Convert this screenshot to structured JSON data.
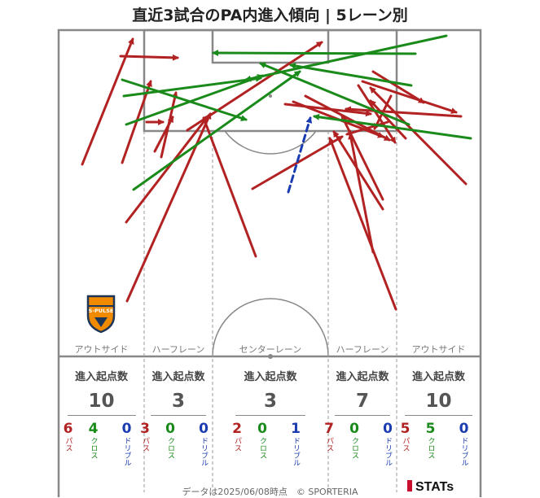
{
  "title": "直近3試合のPA内進入傾向 | 5レーン別",
  "lanes": [
    {
      "label": "アウトサイド"
    },
    {
      "label": "ハーフレーン"
    },
    {
      "label": "センターレーン"
    },
    {
      "label": "ハーフレーン"
    },
    {
      "label": "アウトサイド"
    }
  ],
  "stats_title": "進入起点数",
  "stats": [
    {
      "total": "10",
      "pass": "6",
      "cross": "4",
      "dribble": "0"
    },
    {
      "total": "3",
      "pass": "3",
      "cross": "0",
      "dribble": "0"
    },
    {
      "total": "3",
      "pass": "2",
      "cross": "0",
      "dribble": "1"
    },
    {
      "total": "7",
      "pass": "7",
      "cross": "0",
      "dribble": "0"
    },
    {
      "total": "10",
      "pass": "5",
      "cross": "5",
      "dribble": "0"
    }
  ],
  "labels": {
    "pass": "パス",
    "cross": "クロス",
    "dribble": "ドリブル"
  },
  "colors": {
    "pass": "#b22222",
    "cross": "#1a8a1a",
    "dribble": "#1a3cb0"
  },
  "crest_text": "S-PULSE",
  "footer": "データは2025/06/08時点　© SPORTERIA",
  "brand": "STATs"
}
